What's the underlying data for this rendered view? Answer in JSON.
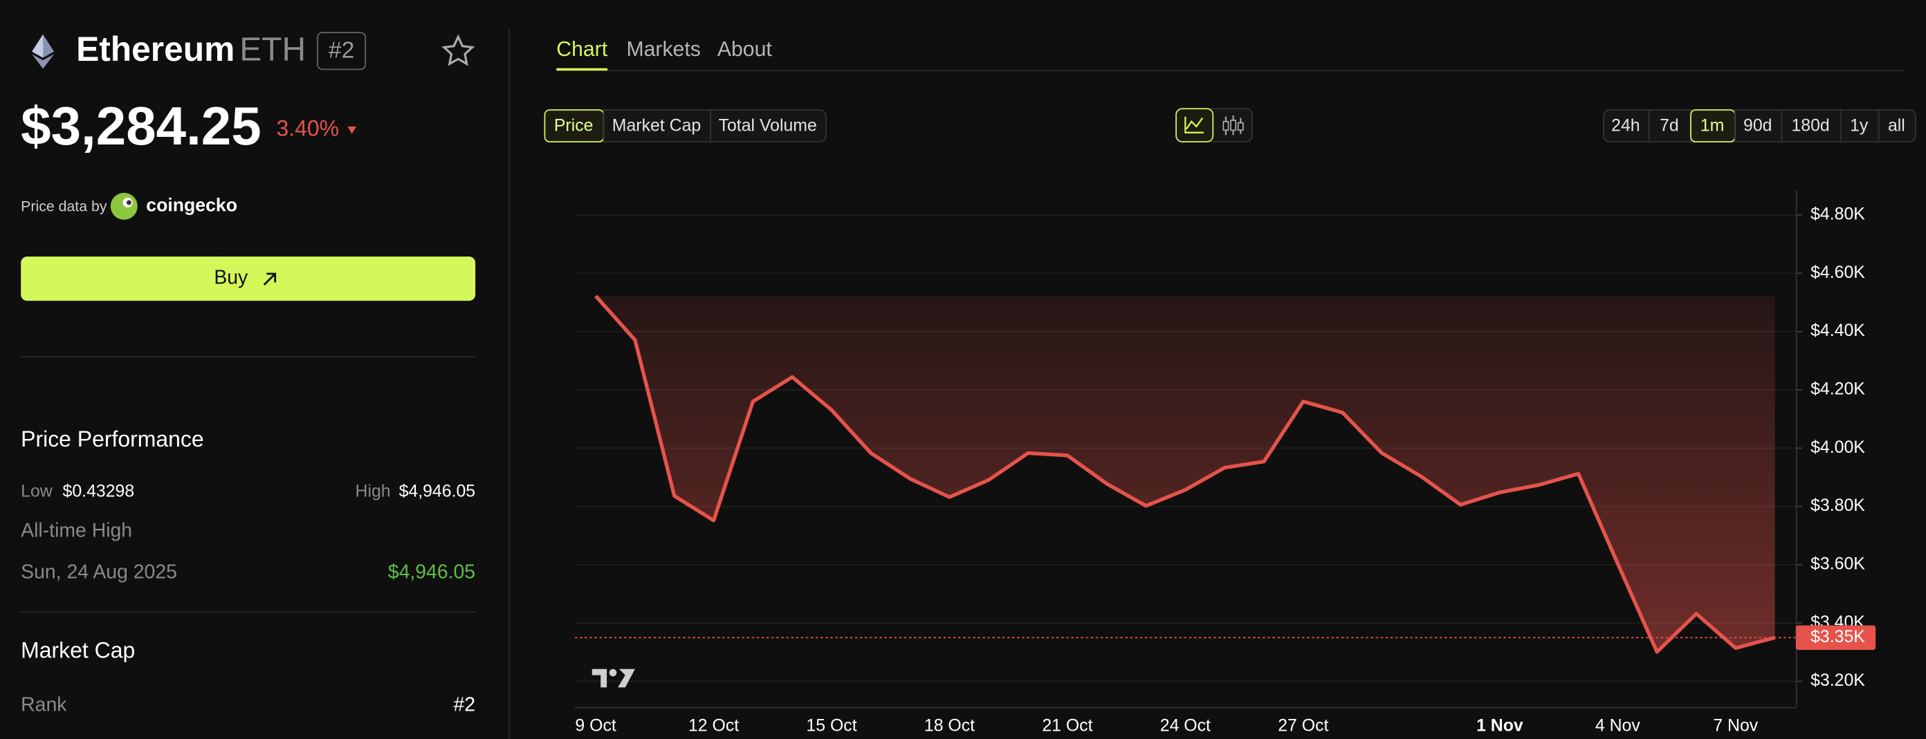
{
  "header": {
    "name": "Ethereum",
    "symbol": "ETH",
    "rank": "#2",
    "price": "$3,284.25",
    "change": "3.40%",
    "price_source_label": "Price data by",
    "price_source": "coingecko"
  },
  "buy_button": "Buy",
  "performance": {
    "title": "Price Performance",
    "low_label": "Low",
    "low": "$0.43298",
    "high_label": "High",
    "high": "$4,946.05",
    "ath_label": "All-time High",
    "ath_date": "Sun, 24 Aug 2025",
    "ath_value": "$4,946.05"
  },
  "market_cap": {
    "title": "Market Cap",
    "rank_label": "Rank",
    "rank": "#2"
  },
  "tabs": [
    "Chart",
    "Markets",
    "About"
  ],
  "metric_buttons": [
    "Price",
    "Market Cap",
    "Total Volume"
  ],
  "range_buttons": [
    "24h",
    "7d",
    "1m",
    "90d",
    "180d",
    "1y",
    "all"
  ],
  "chart_data": {
    "type": "line",
    "color": "#e5534b",
    "categories": [
      "9 Oct",
      null,
      null,
      "12 Oct",
      null,
      null,
      "15 Oct",
      null,
      null,
      "18 Oct",
      null,
      null,
      "21 Oct",
      null,
      null,
      "24 Oct",
      null,
      null,
      "27 Oct",
      null,
      null,
      null,
      null,
      "1 Nov",
      null,
      null,
      "4 Nov",
      null,
      null,
      "7 Nov",
      null
    ],
    "values": [
      4522,
      4371,
      3836,
      3752,
      4160,
      4244,
      4131,
      3983,
      3895,
      3832,
      3891,
      3983,
      3975,
      3878,
      3802,
      3857,
      3933,
      3954,
      4160,
      4122,
      3983,
      3903,
      3806,
      3848,
      3874,
      3912,
      3604,
      3301,
      3432,
      3314,
      3350
    ],
    "ylim": [
      3116,
      4872
    ],
    "yticks": [
      {
        "value": 3200,
        "label": "$3.20K"
      },
      {
        "value": 3400,
        "label": "$3.40K"
      },
      {
        "value": 3600,
        "label": "$3.60K"
      },
      {
        "value": 3800,
        "label": "$3.80K"
      },
      {
        "value": 4000,
        "label": "$4.00K"
      },
      {
        "value": 4200,
        "label": "$4.20K"
      },
      {
        "value": 4400,
        "label": "$4.40K"
      },
      {
        "value": 4600,
        "label": "$4.60K"
      },
      {
        "value": 4800,
        "label": "$4.80K"
      }
    ],
    "grid": true,
    "price_line": {
      "value": 3350,
      "label": "$3.35K"
    }
  }
}
